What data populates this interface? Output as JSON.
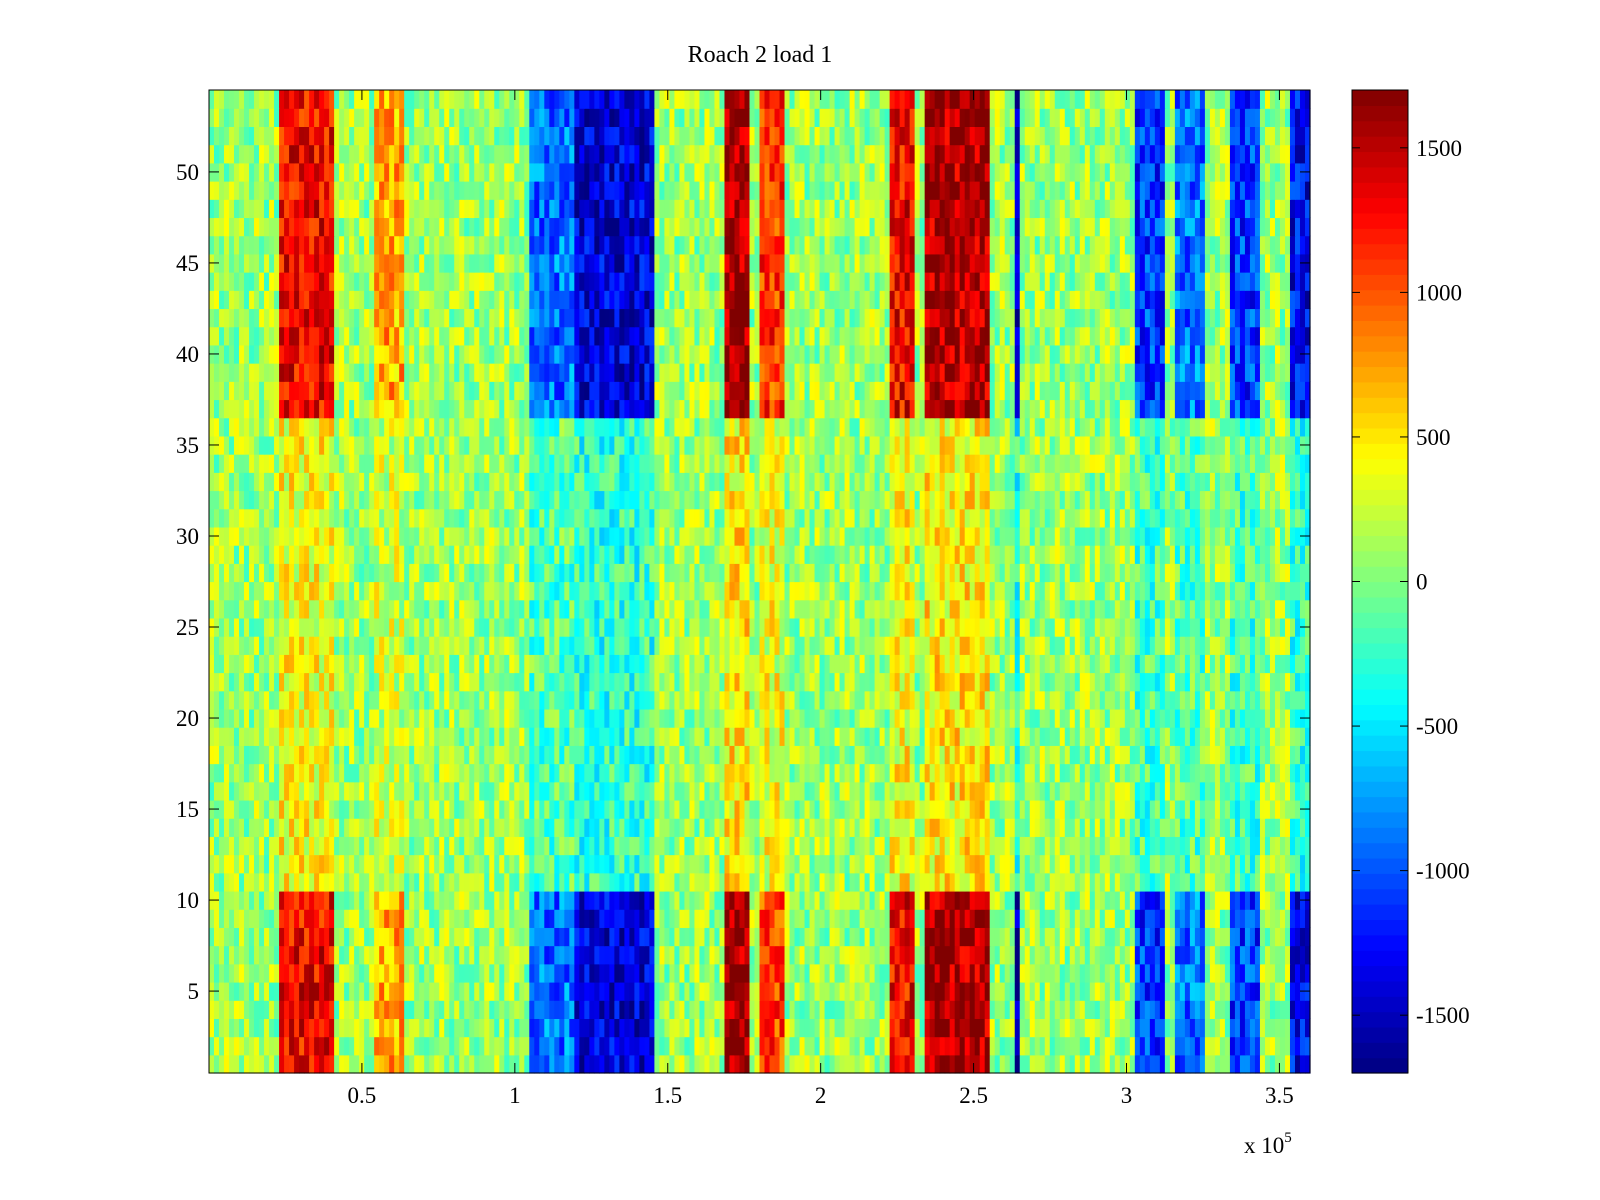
{
  "chart_data": {
    "type": "heatmap",
    "title": "Roach 2 load 1",
    "xlabel": "",
    "ylabel": "",
    "x_multiplier_label": "x 10",
    "x_multiplier_exponent": "5",
    "xlim": [
      0,
      3.6
    ],
    "ylim": [
      0.5,
      54.5
    ],
    "x_ticks": [
      {
        "value": 0.5,
        "label": "0.5"
      },
      {
        "value": 1,
        "label": "1"
      },
      {
        "value": 1.5,
        "label": "1.5"
      },
      {
        "value": 2,
        "label": "2"
      },
      {
        "value": 2.5,
        "label": "2.5"
      },
      {
        "value": 3,
        "label": "3"
      },
      {
        "value": 3.5,
        "label": "3.5"
      }
    ],
    "y_ticks": [
      {
        "value": 5,
        "label": "5"
      },
      {
        "value": 10,
        "label": "10"
      },
      {
        "value": 15,
        "label": "15"
      },
      {
        "value": 20,
        "label": "20"
      },
      {
        "value": 25,
        "label": "25"
      },
      {
        "value": 30,
        "label": "30"
      },
      {
        "value": 35,
        "label": "35"
      },
      {
        "value": 40,
        "label": "40"
      },
      {
        "value": 45,
        "label": "45"
      },
      {
        "value": 50,
        "label": "50"
      }
    ],
    "colorbar": {
      "colormap": "jet",
      "clim": [
        -1700,
        1700
      ],
      "ticks": [
        {
          "value": 1500,
          "label": "1500"
        },
        {
          "value": 1000,
          "label": "1000"
        },
        {
          "value": 500,
          "label": "500"
        },
        {
          "value": 0,
          "label": "0"
        },
        {
          "value": -500,
          "label": "-500"
        },
        {
          "value": -1000,
          "label": "-1000"
        },
        {
          "value": -1500,
          "label": "-1500"
        }
      ]
    },
    "rows": 54,
    "bands": [
      {
        "x_start": 0.23,
        "x_end": 0.41,
        "value": 1300,
        "label": "warm"
      },
      {
        "x_start": 0.54,
        "x_end": 0.64,
        "value": 700,
        "label": "warm"
      },
      {
        "x_start": 1.05,
        "x_end": 1.2,
        "value": -900,
        "label": "cool"
      },
      {
        "x_start": 1.2,
        "x_end": 1.45,
        "value": -1400,
        "label": "cool"
      },
      {
        "x_start": 1.69,
        "x_end": 1.77,
        "value": 1600,
        "label": "warm"
      },
      {
        "x_start": 1.8,
        "x_end": 1.88,
        "value": 1100,
        "label": "warm"
      },
      {
        "x_start": 2.22,
        "x_end": 2.31,
        "value": 1300,
        "label": "warm"
      },
      {
        "x_start": 2.34,
        "x_end": 2.56,
        "value": 1550,
        "label": "warm"
      },
      {
        "x_start": 2.63,
        "x_end": 2.645,
        "value": -1600,
        "label": "cool"
      },
      {
        "x_start": 3.02,
        "x_end": 3.13,
        "value": -1100,
        "label": "cool"
      },
      {
        "x_start": 3.16,
        "x_end": 3.25,
        "value": -900,
        "label": "cool"
      },
      {
        "x_start": 3.34,
        "x_end": 3.44,
        "value": -1100,
        "label": "cool"
      },
      {
        "x_start": 3.54,
        "x_end": 3.6,
        "value": -1300,
        "label": "cool"
      }
    ],
    "row_profile": {
      "note_free": true,
      "strong_rows": [
        [
          1,
          10
        ],
        [
          37,
          54
        ]
      ],
      "weak_rows": [
        [
          11,
          36
        ]
      ]
    },
    "background_value": 100
  }
}
